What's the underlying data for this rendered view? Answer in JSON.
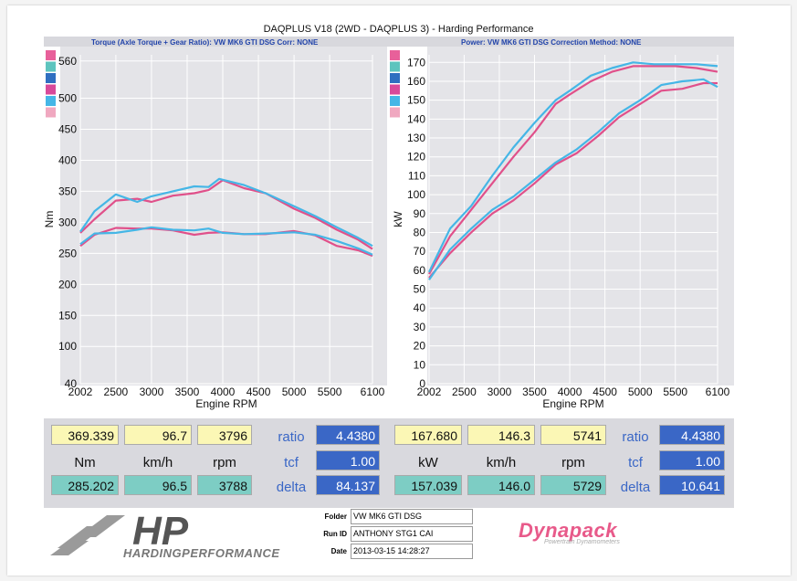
{
  "title": "DAQPLUS V18 (2WD - DAQPLUS 3) - Harding Performance",
  "left_header": "Torque (Axle Torque + Gear Ratio): VW MK6 GTI DSG     Corr: NONE",
  "right_header": "Power: VW MK6 GTI DSG     Correction Method: NONE",
  "colors": {
    "pink": "#e0508a",
    "cyan": "#45b6e6",
    "teal": "#5ec4be",
    "blue": "#2f6fc0",
    "grid": "#ffffff",
    "plot_bg": "#e4e4e8"
  },
  "legend_swatches": [
    "#e8609a",
    "#5ec4be",
    "#2f6fc0",
    "#d84a9a",
    "#45b6e6",
    "#f0a8c0"
  ],
  "readouts_left": {
    "top": [
      "369.339",
      "96.7",
      "3796"
    ],
    "units": [
      "Nm",
      "km/h",
      "rpm"
    ],
    "bottom": [
      "285.202",
      "96.5",
      "3788"
    ],
    "labels": [
      "ratio",
      "tcf",
      "delta"
    ],
    "right": [
      "4.4380",
      "1.00",
      "84.137"
    ]
  },
  "readouts_right": {
    "top": [
      "167.680",
      "146.3",
      "5741"
    ],
    "units": [
      "kW",
      "km/h",
      "rpm"
    ],
    "bottom": [
      "157.039",
      "146.0",
      "5729"
    ],
    "labels": [
      "ratio",
      "tcf",
      "delta"
    ],
    "right": [
      "4.4380",
      "1.00",
      "10.641"
    ]
  },
  "footer": {
    "folder_label": "Folder",
    "folder": "VW MK6 GTI DSG",
    "runid_label": "Run ID",
    "runid": "ANTHONY STG1 CAI",
    "date_label": "Date",
    "date": "2013-03-15 14:28:27",
    "logo_text": "HP",
    "logo_sub": "HARDINGPERFORMANCE",
    "brand": "Dynapack",
    "brand_sub": "Powertrain Dynamometers"
  },
  "chart_data": [
    {
      "type": "line",
      "xlabel": "Engine RPM",
      "ylabel": "Nm",
      "xlim": [
        2002,
        6100
      ],
      "ylim": [
        40,
        570
      ],
      "x_ticks": [
        2002,
        2500,
        3000,
        3500,
        4000,
        4500,
        5000,
        5500,
        6100
      ],
      "y_ticks": [
        40,
        100,
        150,
        200,
        250,
        300,
        350,
        400,
        450,
        500,
        560
      ],
      "series": [
        {
          "color": "#e0508a",
          "x": [
            2002,
            2200,
            2500,
            2800,
            3000,
            3300,
            3600,
            3800,
            4000,
            4300,
            4600,
            5000,
            5300,
            5600,
            5900,
            6100
          ],
          "y": [
            283,
            305,
            335,
            338,
            333,
            343,
            347,
            352,
            368,
            355,
            347,
            322,
            307,
            288,
            272,
            257
          ]
        },
        {
          "color": "#45b6e6",
          "x": [
            2002,
            2200,
            2500,
            2800,
            3000,
            3300,
            3600,
            3800,
            3950,
            4300,
            4600,
            5000,
            5300,
            5600,
            5900,
            6100
          ],
          "y": [
            285,
            318,
            345,
            333,
            342,
            350,
            358,
            357,
            370,
            360,
            347,
            326,
            310,
            292,
            275,
            262
          ]
        },
        {
          "color": "#e0508a",
          "x": [
            2002,
            2200,
            2500,
            2800,
            3000,
            3300,
            3600,
            3800,
            4000,
            4300,
            4600,
            5000,
            5300,
            5600,
            5900,
            6100
          ],
          "y": [
            262,
            280,
            291,
            290,
            290,
            287,
            280,
            283,
            284,
            281,
            281,
            286,
            279,
            262,
            255,
            246
          ]
        },
        {
          "color": "#45b6e6",
          "x": [
            2002,
            2200,
            2500,
            2800,
            3000,
            3300,
            3600,
            3800,
            4000,
            4300,
            4600,
            5000,
            5300,
            5600,
            5900,
            6100
          ],
          "y": [
            265,
            282,
            283,
            288,
            292,
            288,
            287,
            290,
            283,
            281,
            282,
            284,
            280,
            270,
            258,
            248
          ]
        }
      ]
    },
    {
      "type": "line",
      "xlabel": "Engine RPM",
      "ylabel": "kW",
      "xlim": [
        2002,
        6100
      ],
      "ylim": [
        0,
        174
      ],
      "x_ticks": [
        2002,
        2500,
        3000,
        3500,
        4000,
        4500,
        5000,
        5500,
        6100
      ],
      "y_ticks": [
        0,
        10,
        20,
        30,
        40,
        50,
        60,
        70,
        80,
        90,
        100,
        110,
        120,
        130,
        140,
        150,
        160,
        170
      ],
      "series": [
        {
          "color": "#e0508a",
          "x": [
            2002,
            2300,
            2600,
            2900,
            3200,
            3500,
            3800,
            4000,
            4300,
            4600,
            4900,
            5200,
            5500,
            5800,
            6100
          ],
          "y": [
            58,
            78,
            92,
            106,
            120,
            133,
            148,
            153,
            160,
            165,
            168,
            168,
            168,
            167,
            165
          ]
        },
        {
          "color": "#45b6e6",
          "x": [
            2002,
            2300,
            2600,
            2900,
            3200,
            3500,
            3800,
            4000,
            4300,
            4600,
            4900,
            5200,
            5500,
            5800,
            6100
          ],
          "y": [
            59,
            82,
            94,
            110,
            125,
            138,
            150,
            155,
            163,
            167,
            170,
            169,
            169,
            169,
            168
          ]
        },
        {
          "color": "#e0508a",
          "x": [
            2002,
            2300,
            2600,
            2900,
            3200,
            3500,
            3800,
            4100,
            4400,
            4700,
            5000,
            5300,
            5600,
            5900,
            6100
          ],
          "y": [
            56,
            69,
            80,
            90,
            97,
            106,
            116,
            122,
            131,
            141,
            148,
            155,
            156,
            159,
            159
          ]
        },
        {
          "color": "#45b6e6",
          "x": [
            2002,
            2300,
            2600,
            2900,
            3200,
            3500,
            3800,
            4100,
            4400,
            4700,
            5000,
            5300,
            5600,
            5900,
            6100
          ],
          "y": [
            55,
            71,
            82,
            92,
            99,
            108,
            117,
            124,
            133,
            143,
            150,
            158,
            160,
            161,
            157
          ]
        }
      ]
    }
  ]
}
